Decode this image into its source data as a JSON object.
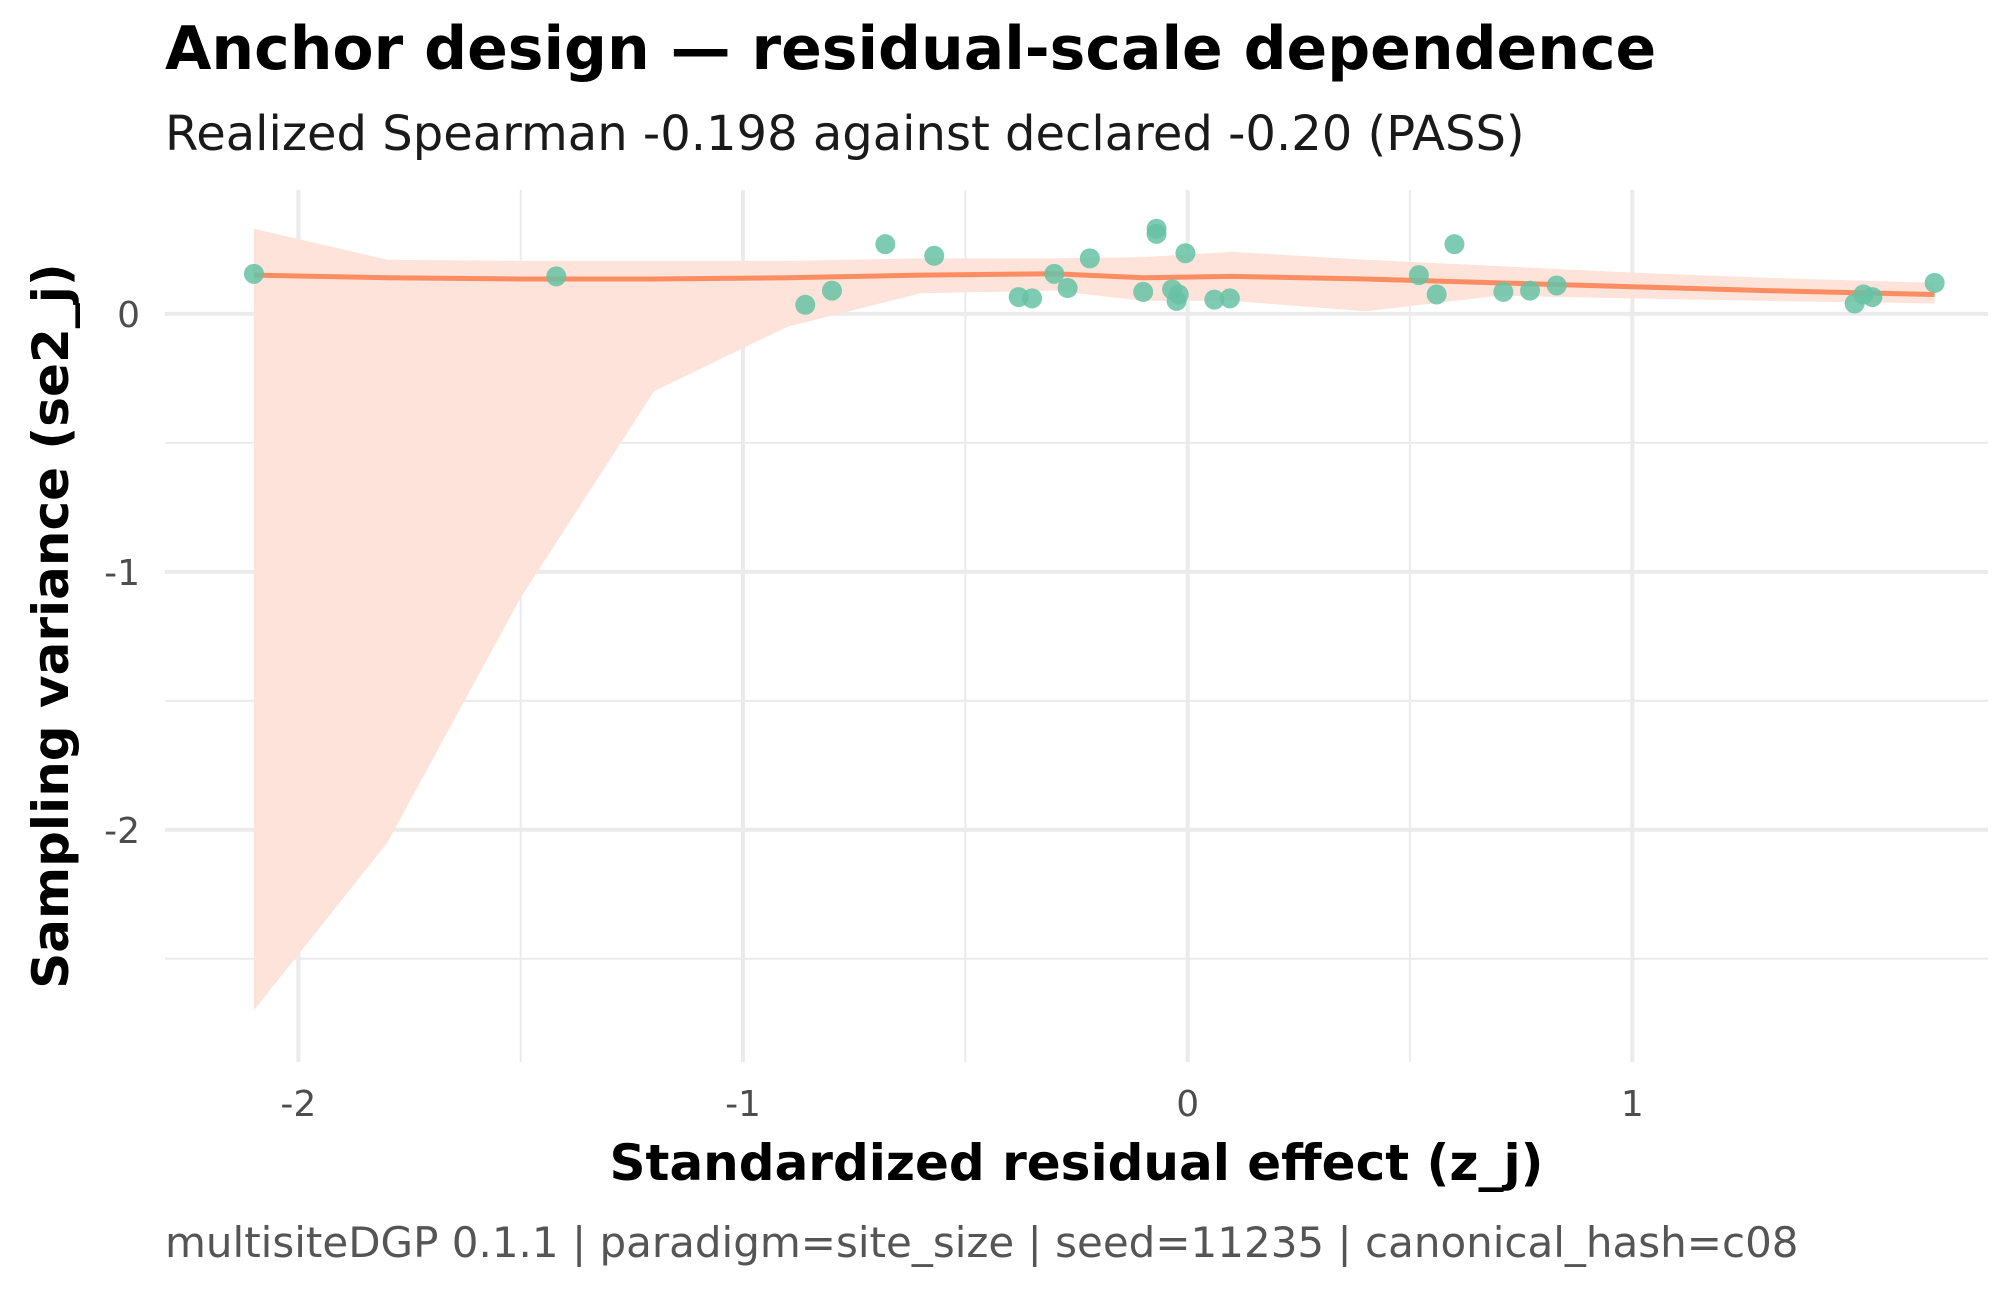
{
  "chart_data": {
    "type": "scatter",
    "title": "Anchor design — residual-scale dependence",
    "subtitle": "Realized Spearman -0.198 against declared -0.20 (PASS)",
    "caption": "multisiteDGP 0.1.1 | paradigm=site_size | seed=11235 | canonical_hash=c08",
    "xlabel": "Standardized residual effect (z_j)",
    "ylabel": "Sampling variance (se2_j)",
    "xlim": [
      -2.3,
      1.8
    ],
    "ylim": [
      -2.9,
      0.48
    ],
    "x_ticks": [
      -2,
      -1,
      0,
      1
    ],
    "x_tick_labels": [
      "-2",
      "-1",
      "0",
      "1"
    ],
    "y_ticks": [
      0,
      -1,
      -2
    ],
    "y_tick_labels": [
      "0",
      "-1",
      "-2"
    ],
    "grid": true,
    "colors": {
      "points": "#66c2a5",
      "smooth": "#fc8d62",
      "band": "#fde3d9",
      "grid": "#ebebeb"
    },
    "points": [
      {
        "x": -2.1,
        "y": 0.155
      },
      {
        "x": -1.42,
        "y": 0.145
      },
      {
        "x": -0.86,
        "y": 0.035
      },
      {
        "x": -0.8,
        "y": 0.09
      },
      {
        "x": -0.68,
        "y": 0.27
      },
      {
        "x": -0.57,
        "y": 0.225
      },
      {
        "x": -0.38,
        "y": 0.065
      },
      {
        "x": -0.35,
        "y": 0.06
      },
      {
        "x": -0.3,
        "y": 0.155
      },
      {
        "x": -0.27,
        "y": 0.1
      },
      {
        "x": -0.22,
        "y": 0.215
      },
      {
        "x": -0.1,
        "y": 0.085
      },
      {
        "x": -0.07,
        "y": 0.31
      },
      {
        "x": -0.07,
        "y": 0.33
      },
      {
        "x": -0.035,
        "y": 0.095
      },
      {
        "x": -0.025,
        "y": 0.05
      },
      {
        "x": -0.02,
        "y": 0.075
      },
      {
        "x": -0.005,
        "y": 0.235
      },
      {
        "x": 0.06,
        "y": 0.055
      },
      {
        "x": 0.095,
        "y": 0.06
      },
      {
        "x": 0.52,
        "y": 0.15
      },
      {
        "x": 0.56,
        "y": 0.075
      },
      {
        "x": 0.6,
        "y": 0.27
      },
      {
        "x": 0.71,
        "y": 0.085
      },
      {
        "x": 0.77,
        "y": 0.09
      },
      {
        "x": 0.83,
        "y": 0.11
      },
      {
        "x": 1.5,
        "y": 0.04
      },
      {
        "x": 1.52,
        "y": 0.075
      },
      {
        "x": 1.54,
        "y": 0.065
      },
      {
        "x": 1.68,
        "y": 0.12
      }
    ],
    "smooth": {
      "x": [
        -2.1,
        -1.8,
        -1.5,
        -1.2,
        -0.9,
        -0.6,
        -0.3,
        -0.1,
        0.1,
        0.4,
        0.7,
        1.0,
        1.3,
        1.68
      ],
      "y": [
        0.15,
        0.14,
        0.135,
        0.135,
        0.14,
        0.15,
        0.155,
        0.14,
        0.145,
        0.135,
        0.12,
        0.105,
        0.09,
        0.075
      ],
      "lower": [
        -2.7,
        -2.05,
        -1.1,
        -0.3,
        -0.05,
        0.08,
        0.09,
        0.05,
        0.05,
        0.01,
        0.07,
        0.06,
        0.05,
        0.04
      ],
      "upper": [
        0.33,
        0.21,
        0.205,
        0.205,
        0.205,
        0.215,
        0.215,
        0.22,
        0.24,
        0.21,
        0.185,
        0.16,
        0.14,
        0.12
      ]
    }
  }
}
